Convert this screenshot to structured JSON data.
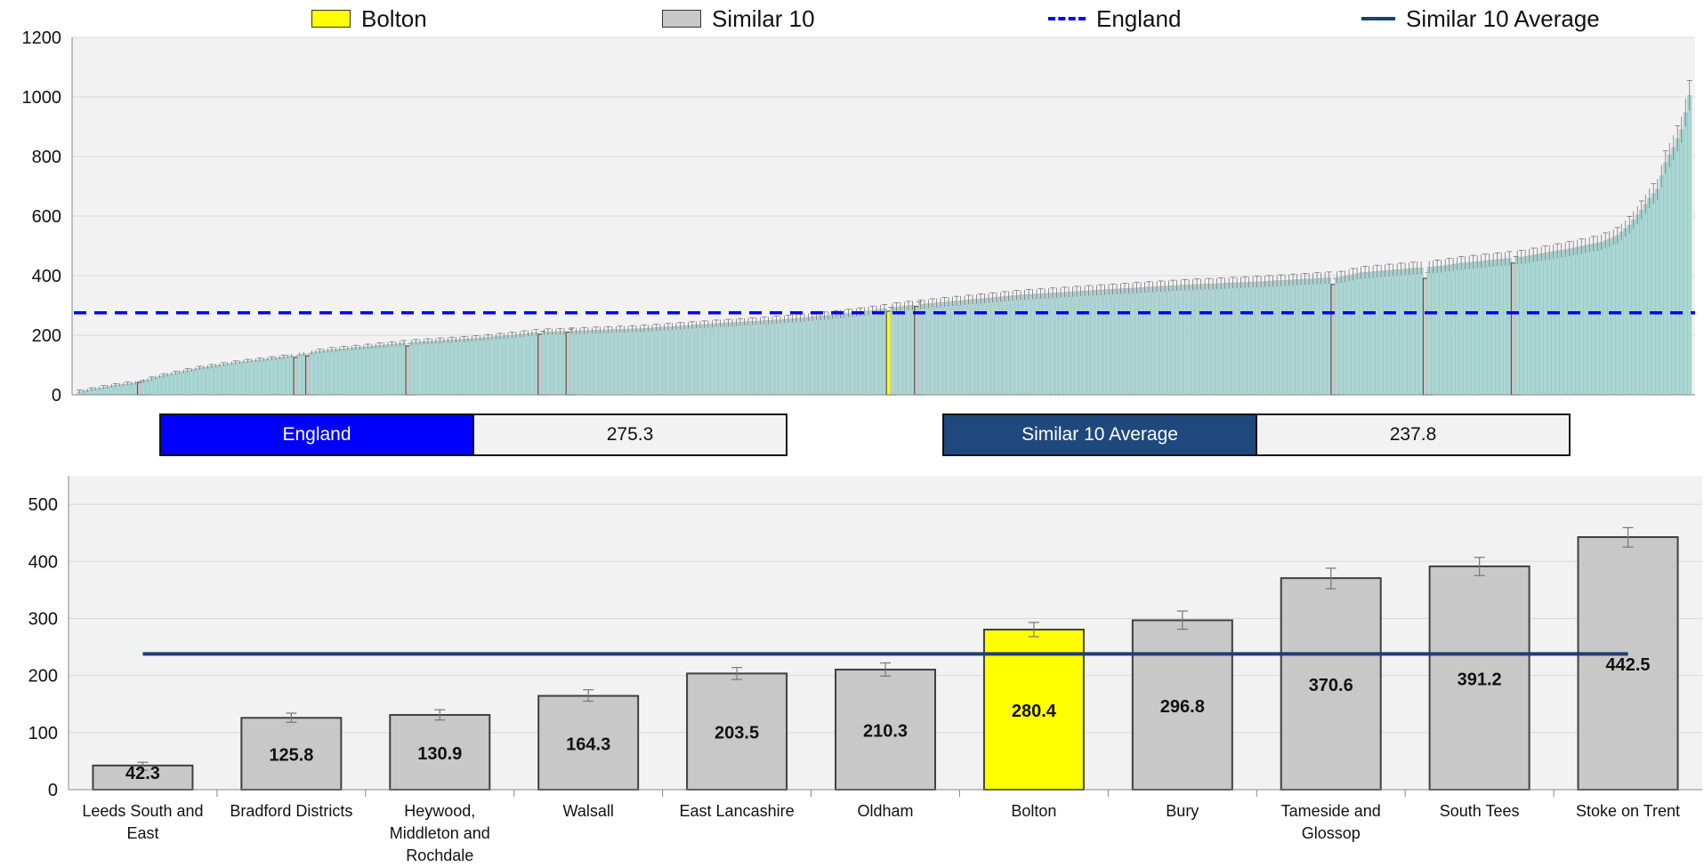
{
  "legend": {
    "items": [
      {
        "label": "Bolton",
        "kind": "box",
        "color": "#ffff00"
      },
      {
        "label": "Similar 10",
        "kind": "box",
        "color": "#c8c8c8"
      },
      {
        "label": "England",
        "kind": "dash",
        "color": "#0000ff"
      },
      {
        "label": "Similar 10 Average",
        "kind": "line",
        "color": "#1f3f72"
      }
    ]
  },
  "stats": {
    "england": {
      "label": "England",
      "value": "275.3",
      "color": "#0000ff"
    },
    "similar": {
      "label": "Similar 10 Average",
      "value": "237.8",
      "color": "#1f497d"
    }
  },
  "chart_data": [
    {
      "type": "bar",
      "title": "",
      "ylim": [
        0,
        1200
      ],
      "yticks": [
        0,
        200,
        400,
        600,
        800,
        1000,
        1200
      ],
      "grid": true,
      "reference_lines": [
        {
          "name": "England",
          "value": 275.3,
          "style": "dashed",
          "color": "#0000ff"
        }
      ],
      "colors": {
        "default": "#a8d8d4",
        "similar": "#c8c8c8",
        "bolton": "#ffff00"
      },
      "anchors": [
        [
          0,
          10
        ],
        [
          8,
          30
        ],
        [
          15,
          42
        ],
        [
          20,
          62
        ],
        [
          30,
          90
        ],
        [
          40,
          110
        ],
        [
          50,
          125
        ],
        [
          62,
          150
        ],
        [
          72,
          162
        ],
        [
          82,
          175
        ],
        [
          100,
          190
        ],
        [
          115,
          210
        ],
        [
          140,
          222
        ],
        [
          160,
          240
        ],
        [
          175,
          252
        ],
        [
          186,
          265
        ],
        [
          195,
          278
        ],
        [
          205,
          296
        ],
        [
          215,
          310
        ],
        [
          235,
          335
        ],
        [
          255,
          352
        ],
        [
          275,
          368
        ],
        [
          295,
          380
        ],
        [
          315,
          395
        ],
        [
          320,
          410
        ],
        [
          340,
          432
        ],
        [
          345,
          442
        ],
        [
          360,
          462
        ],
        [
          372,
          490
        ],
        [
          380,
          512
        ],
        [
          384,
          535
        ],
        [
          387,
          570
        ],
        [
          390,
          620
        ],
        [
          392,
          660
        ],
        [
          394,
          690
        ],
        [
          396,
          780
        ],
        [
          398,
          830
        ],
        [
          400,
          890
        ],
        [
          402,
          1005
        ]
      ],
      "highlights": [
        {
          "index": 15,
          "group": "similar",
          "value": 42.3
        },
        {
          "index": 54,
          "group": "similar",
          "value": 125.8
        },
        {
          "index": 57,
          "group": "similar",
          "value": 130.9
        },
        {
          "index": 82,
          "group": "similar",
          "value": 164.3
        },
        {
          "index": 115,
          "group": "similar",
          "value": 203.5
        },
        {
          "index": 122,
          "group": "similar",
          "value": 210.3
        },
        {
          "index": 202,
          "group": "bolton",
          "value": 280.4
        },
        {
          "index": 209,
          "group": "similar",
          "value": 296.8
        },
        {
          "index": 313,
          "group": "similar",
          "value": 370.6
        },
        {
          "index": 336,
          "group": "similar",
          "value": 391.2
        },
        {
          "index": 358,
          "group": "similar",
          "value": 442.5
        }
      ],
      "count": 403
    },
    {
      "type": "bar",
      "title": "",
      "ylim": [
        0,
        550
      ],
      "yticks": [
        0,
        100,
        200,
        300,
        400,
        500
      ],
      "grid": true,
      "categories": [
        "Leeds South and East",
        "Bradford Districts",
        "Heywood, Middleton and Rochdale",
        "Walsall",
        "East Lancashire",
        "Oldham",
        "Bolton",
        "Bury",
        "Tameside and Glossop",
        "South Tees",
        "Stoke on Trent"
      ],
      "category_lines": [
        [
          "Leeds South and",
          "East"
        ],
        [
          "Bradford Districts"
        ],
        [
          "Heywood,",
          "Middleton and",
          "Rochdale"
        ],
        [
          "Walsall"
        ],
        [
          "East Lancashire"
        ],
        [
          "Oldham"
        ],
        [
          "Bolton"
        ],
        [
          "Bury"
        ],
        [
          "Tameside and",
          "Glossop"
        ],
        [
          "South Tees"
        ],
        [
          "Stoke on Trent"
        ]
      ],
      "values": [
        42.3,
        125.8,
        130.9,
        164.3,
        203.5,
        210.3,
        280.4,
        296.8,
        370.6,
        391.2,
        442.5
      ],
      "labels": [
        "42.3",
        "125.8",
        "130.9",
        "164.3",
        "203.5",
        "210.3",
        "280.4",
        "296.8",
        "370.6",
        "391.2",
        "442.5"
      ],
      "error_low": [
        34,
        118,
        122,
        155,
        193,
        199,
        268,
        281,
        352,
        375,
        425
      ],
      "error_high": [
        48,
        134,
        140,
        175,
        214,
        222,
        293,
        313,
        388,
        407,
        459
      ],
      "highlight_index": 6,
      "reference_lines": [
        {
          "name": "Similar 10 Average",
          "value": 237.8,
          "style": "solid",
          "color": "#1f3f72"
        }
      ]
    }
  ]
}
